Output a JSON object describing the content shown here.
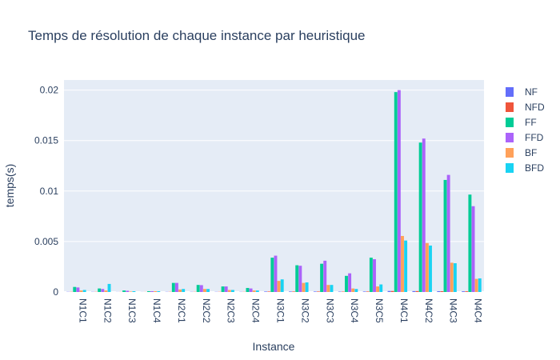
{
  "chart_data": {
    "type": "bar",
    "title": "Temps de résolution de chaque instance par heuristique",
    "xlabel": "Instance",
    "ylabel": "temps(s)",
    "ylim": [
      0,
      0.021
    ],
    "yticks": [
      "0",
      "0.005",
      "0.01",
      "0.015",
      "0.02"
    ],
    "ytick_values": [
      0,
      0.005,
      0.01,
      0.015,
      0.02
    ],
    "grid": true,
    "legend_position": "right",
    "categories": [
      "N1C1",
      "N1C2",
      "N1C3",
      "N1C4",
      "N2C1",
      "N2C2",
      "N2C3",
      "N2C4",
      "N3C1",
      "N3C2",
      "N3C3",
      "N3C4",
      "N3C5",
      "N4C1",
      "N4C2",
      "N4C3",
      "N4C4"
    ],
    "series": [
      {
        "name": "NF",
        "color": "#636efa",
        "values": [
          2e-05,
          2e-05,
          1e-05,
          1e-05,
          2e-05,
          2e-05,
          2e-05,
          2e-05,
          5e-05,
          5e-05,
          5e-05,
          4e-05,
          5e-05,
          0.0001,
          9e-05,
          8e-05,
          7e-05
        ]
      },
      {
        "name": "NFD",
        "color": "#ef553b",
        "values": [
          2e-05,
          2e-05,
          1e-05,
          1e-05,
          2e-05,
          2e-05,
          2e-05,
          2e-05,
          5e-05,
          5e-05,
          5e-05,
          4e-05,
          5e-05,
          0.0001,
          9e-05,
          8e-05,
          7e-05
        ]
      },
      {
        "name": "FF",
        "color": "#00cc96",
        "values": [
          0.0005,
          0.00035,
          0.00015,
          8e-05,
          0.0009,
          0.0007,
          0.00055,
          0.0004,
          0.0034,
          0.00265,
          0.0028,
          0.0016,
          0.0034,
          0.0198,
          0.0148,
          0.0111,
          0.00965
        ]
      },
      {
        "name": "FFD",
        "color": "#ab63fa",
        "values": [
          0.00045,
          0.0003,
          0.00012,
          8e-05,
          0.0009,
          0.00068,
          0.00055,
          0.00035,
          0.0036,
          0.0026,
          0.0031,
          0.00185,
          0.00325,
          0.02,
          0.0152,
          0.0116,
          0.0085
        ]
      },
      {
        "name": "BF",
        "color": "#ffa15a",
        "values": [
          0.00015,
          0.00015,
          5e-05,
          8e-05,
          0.00025,
          0.0003,
          0.0002,
          0.00015,
          0.0011,
          0.0009,
          0.0007,
          0.00035,
          0.00055,
          0.00555,
          0.00485,
          0.0029,
          0.0013
        ]
      },
      {
        "name": "BFD",
        "color": "#19d3f3",
        "values": [
          0.0002,
          0.0008,
          8e-05,
          8e-05,
          0.0003,
          0.0003,
          0.0002,
          0.00015,
          0.00125,
          0.00095,
          0.0007,
          0.0003,
          0.00075,
          0.0051,
          0.0046,
          0.00285,
          0.00135
        ]
      }
    ]
  }
}
